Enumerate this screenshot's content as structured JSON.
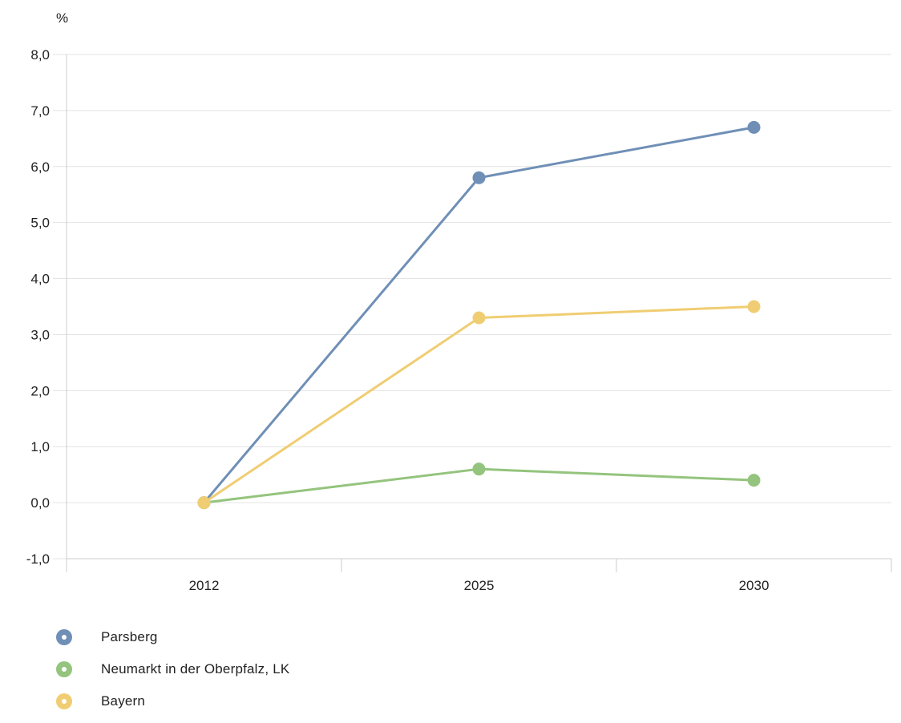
{
  "chart_data": {
    "type": "line",
    "unit_label": "%",
    "categories": [
      "2012",
      "2025",
      "2030"
    ],
    "ylim": [
      -1.0,
      8.0
    ],
    "yticks": [
      -1.0,
      0.0,
      1.0,
      2.0,
      3.0,
      4.0,
      5.0,
      6.0,
      7.0,
      8.0
    ],
    "ytick_labels": [
      "-1,0",
      "0,0",
      "1,0",
      "2,0",
      "3,0",
      "4,0",
      "5,0",
      "6,0",
      "7,0",
      "8,0"
    ],
    "grid": true,
    "legend_position": "bottom-left",
    "series": [
      {
        "name": "Parsberg",
        "color": "#6f8fb6",
        "values": [
          0.0,
          5.8,
          6.7
        ]
      },
      {
        "name": "Neumarkt in der Oberpfalz, LK",
        "color": "#94c47d",
        "values": [
          0.0,
          0.6,
          0.4
        ]
      },
      {
        "name": "Bayern",
        "color": "#f0cd72",
        "values": [
          0.0,
          3.3,
          3.5
        ]
      }
    ]
  }
}
